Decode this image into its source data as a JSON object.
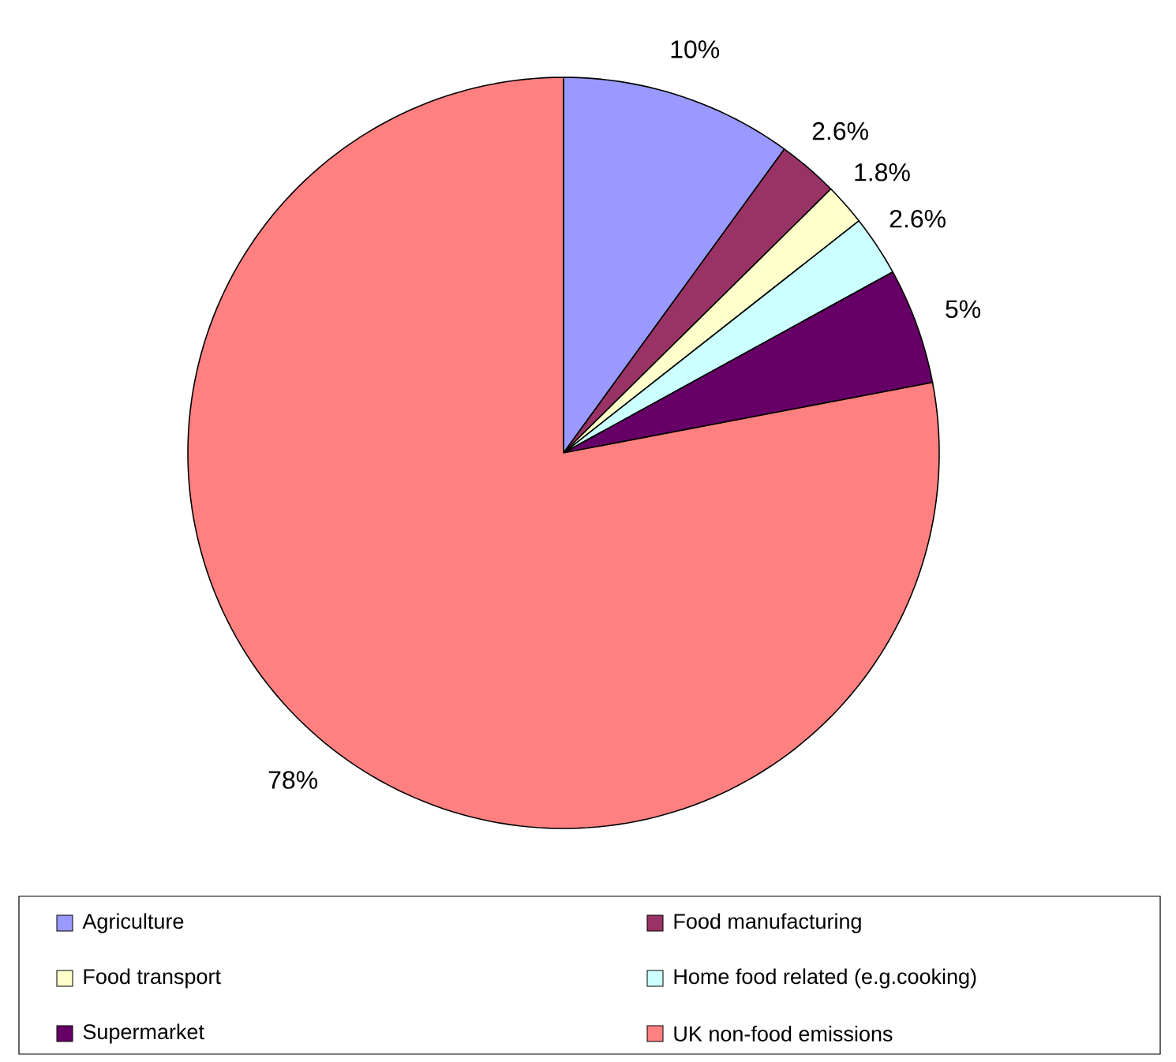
{
  "chart_data": {
    "type": "pie",
    "categories": [
      "Agriculture",
      "Food manufacturing",
      "Food transport",
      "Home food related (e.g.cooking)",
      "Supermarket",
      "UK non-food emissions"
    ],
    "values": [
      10,
      2.6,
      1.8,
      2.6,
      5,
      78
    ],
    "value_labels": [
      "10%",
      "2.6%",
      "1.8%",
      "2.6%",
      "5%",
      "78%"
    ],
    "colors": [
      "#9999ff",
      "#993366",
      "#ffffcc",
      "#ccffff",
      "#660066",
      "#ff8080"
    ],
    "legend": "bottom"
  }
}
